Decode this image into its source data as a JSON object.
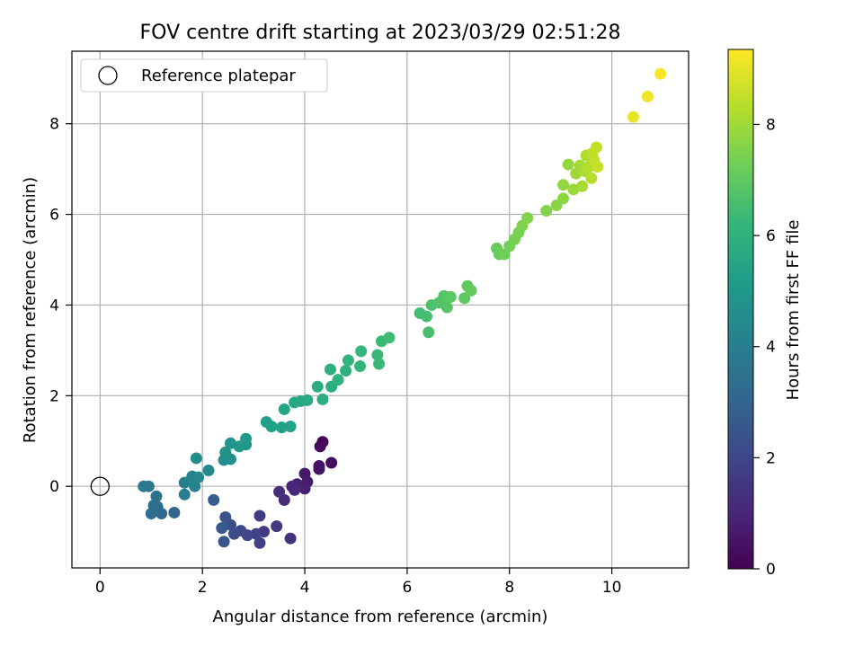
{
  "chart_data": {
    "type": "scatter",
    "title": "FOV centre drift starting at 2023/03/29 02:51:28",
    "xlabel": "Angular distance from reference (arcmin)",
    "ylabel": "Rotation from reference (arcmin)",
    "xlim": [
      -0.55,
      11.5
    ],
    "ylim": [
      -1.8,
      9.6
    ],
    "xticks": [
      0,
      2,
      4,
      6,
      8,
      10
    ],
    "yticks": [
      0,
      2,
      4,
      6,
      8
    ],
    "grid": true,
    "legend": {
      "position": "top-left",
      "entries": [
        {
          "label": "Reference platepar",
          "marker": "open-circle"
        }
      ]
    },
    "reference_point": {
      "x": 0,
      "y": 0,
      "label": "Reference platepar"
    },
    "colorbar": {
      "label": "Hours from first FF file",
      "colormap": "viridis",
      "range": [
        0,
        9.35
      ],
      "ticks": [
        0,
        2,
        4,
        6,
        8
      ]
    },
    "colormap_stops": [
      "#440154",
      "#482878",
      "#3e4989",
      "#31688e",
      "#26828e",
      "#1f9e89",
      "#35b779",
      "#6ece58",
      "#b5de2b",
      "#fde725"
    ],
    "points": [
      {
        "x": 4.35,
        "y": 0.98,
        "c": 0.1
      },
      {
        "x": 4.3,
        "y": 0.88,
        "c": 0.2
      },
      {
        "x": 4.52,
        "y": 0.52,
        "c": 0.3
      },
      {
        "x": 4.28,
        "y": 0.45,
        "c": 0.4
      },
      {
        "x": 4.28,
        "y": 0.38,
        "c": 0.5
      },
      {
        "x": 4.0,
        "y": 0.28,
        "c": 0.6
      },
      {
        "x": 4.05,
        "y": 0.1,
        "c": 0.7
      },
      {
        "x": 4.0,
        "y": -0.05,
        "c": 0.8
      },
      {
        "x": 3.85,
        "y": 0.05,
        "c": 0.9
      },
      {
        "x": 3.75,
        "y": 0.0,
        "c": 1.0
      },
      {
        "x": 3.8,
        "y": -0.08,
        "c": 1.05
      },
      {
        "x": 3.6,
        "y": -0.3,
        "c": 1.15
      },
      {
        "x": 3.5,
        "y": -0.12,
        "c": 1.25
      },
      {
        "x": 3.72,
        "y": -1.15,
        "c": 1.35
      },
      {
        "x": 3.45,
        "y": -0.88,
        "c": 1.5
      },
      {
        "x": 3.2,
        "y": -1.0,
        "c": 1.6
      },
      {
        "x": 3.12,
        "y": -0.65,
        "c": 1.7
      },
      {
        "x": 3.12,
        "y": -1.25,
        "c": 1.8
      },
      {
        "x": 3.05,
        "y": -1.05,
        "c": 1.9
      },
      {
        "x": 2.88,
        "y": -1.08,
        "c": 2.0
      },
      {
        "x": 2.75,
        "y": -0.98,
        "c": 2.1
      },
      {
        "x": 2.62,
        "y": -1.05,
        "c": 2.2
      },
      {
        "x": 2.55,
        "y": -0.85,
        "c": 2.3
      },
      {
        "x": 2.45,
        "y": -0.68,
        "c": 2.4
      },
      {
        "x": 2.42,
        "y": -1.22,
        "c": 2.5
      },
      {
        "x": 2.38,
        "y": -0.92,
        "c": 2.6
      },
      {
        "x": 2.22,
        "y": -0.3,
        "c": 2.75
      },
      {
        "x": 1.45,
        "y": -0.58,
        "c": 3.0
      },
      {
        "x": 1.2,
        "y": -0.6,
        "c": 3.15
      },
      {
        "x": 1.12,
        "y": -0.45,
        "c": 3.25
      },
      {
        "x": 1.0,
        "y": -0.6,
        "c": 3.35
      },
      {
        "x": 1.05,
        "y": -0.42,
        "c": 3.45
      },
      {
        "x": 1.1,
        "y": -0.22,
        "c": 3.55
      },
      {
        "x": 0.95,
        "y": 0.0,
        "c": 3.7
      },
      {
        "x": 0.85,
        "y": 0.0,
        "c": 3.8
      },
      {
        "x": 1.65,
        "y": -0.18,
        "c": 3.95
      },
      {
        "x": 1.65,
        "y": 0.08,
        "c": 4.05
      },
      {
        "x": 1.85,
        "y": 0.0,
        "c": 4.15
      },
      {
        "x": 1.8,
        "y": 0.22,
        "c": 4.25
      },
      {
        "x": 1.92,
        "y": 0.2,
        "c": 4.35
      },
      {
        "x": 2.12,
        "y": 0.35,
        "c": 4.45
      },
      {
        "x": 1.88,
        "y": 0.62,
        "c": 4.55
      },
      {
        "x": 2.42,
        "y": 0.58,
        "c": 4.62
      },
      {
        "x": 2.55,
        "y": 0.6,
        "c": 4.7
      },
      {
        "x": 2.45,
        "y": 0.75,
        "c": 4.78
      },
      {
        "x": 2.55,
        "y": 0.95,
        "c": 4.86
      },
      {
        "x": 2.72,
        "y": 0.88,
        "c": 4.94
      },
      {
        "x": 2.85,
        "y": 0.92,
        "c": 5.02
      },
      {
        "x": 2.85,
        "y": 1.05,
        "c": 5.1
      },
      {
        "x": 3.25,
        "y": 1.42,
        "c": 5.18
      },
      {
        "x": 3.35,
        "y": 1.32,
        "c": 5.26
      },
      {
        "x": 3.55,
        "y": 1.3,
        "c": 5.34
      },
      {
        "x": 3.72,
        "y": 1.32,
        "c": 5.42
      },
      {
        "x": 3.6,
        "y": 1.7,
        "c": 5.5
      },
      {
        "x": 3.8,
        "y": 1.85,
        "c": 5.56
      },
      {
        "x": 3.92,
        "y": 1.88,
        "c": 5.62
      },
      {
        "x": 4.05,
        "y": 1.9,
        "c": 5.68
      },
      {
        "x": 4.25,
        "y": 2.2,
        "c": 5.74
      },
      {
        "x": 4.35,
        "y": 1.92,
        "c": 5.8
      },
      {
        "x": 4.52,
        "y": 2.2,
        "c": 5.86
      },
      {
        "x": 4.5,
        "y": 2.58,
        "c": 5.92
      },
      {
        "x": 4.65,
        "y": 2.35,
        "c": 5.98
      },
      {
        "x": 4.8,
        "y": 2.55,
        "c": 6.04
      },
      {
        "x": 4.85,
        "y": 2.78,
        "c": 6.1
      },
      {
        "x": 5.08,
        "y": 2.65,
        "c": 6.16
      },
      {
        "x": 5.1,
        "y": 2.98,
        "c": 6.22
      },
      {
        "x": 5.42,
        "y": 2.9,
        "c": 6.28
      },
      {
        "x": 5.45,
        "y": 2.7,
        "c": 6.32
      },
      {
        "x": 5.5,
        "y": 3.2,
        "c": 6.36
      },
      {
        "x": 5.65,
        "y": 3.28,
        "c": 6.42
      },
      {
        "x": 6.25,
        "y": 3.82,
        "c": 6.48
      },
      {
        "x": 6.38,
        "y": 3.75,
        "c": 6.54
      },
      {
        "x": 6.42,
        "y": 3.4,
        "c": 6.6
      },
      {
        "x": 6.48,
        "y": 4.0,
        "c": 6.66
      },
      {
        "x": 6.62,
        "y": 4.05,
        "c": 6.72
      },
      {
        "x": 6.72,
        "y": 4.2,
        "c": 6.78
      },
      {
        "x": 6.78,
        "y": 3.95,
        "c": 6.84
      },
      {
        "x": 6.85,
        "y": 4.18,
        "c": 6.9
      },
      {
        "x": 7.12,
        "y": 4.15,
        "c": 6.96
      },
      {
        "x": 7.18,
        "y": 4.42,
        "c": 7.02
      },
      {
        "x": 7.25,
        "y": 4.32,
        "c": 7.08
      },
      {
        "x": 7.75,
        "y": 5.25,
        "c": 7.14
      },
      {
        "x": 7.8,
        "y": 5.12,
        "c": 7.2
      },
      {
        "x": 7.9,
        "y": 5.12,
        "c": 7.26
      },
      {
        "x": 8.0,
        "y": 5.3,
        "c": 7.32
      },
      {
        "x": 8.1,
        "y": 5.45,
        "c": 7.38
      },
      {
        "x": 8.18,
        "y": 5.6,
        "c": 7.44
      },
      {
        "x": 8.25,
        "y": 5.75,
        "c": 7.5
      },
      {
        "x": 8.35,
        "y": 5.92,
        "c": 7.56
      },
      {
        "x": 8.72,
        "y": 6.08,
        "c": 7.62
      },
      {
        "x": 8.92,
        "y": 6.2,
        "c": 7.68
      },
      {
        "x": 9.05,
        "y": 6.35,
        "c": 7.74
      },
      {
        "x": 9.05,
        "y": 6.65,
        "c": 7.8
      },
      {
        "x": 9.15,
        "y": 7.1,
        "c": 7.86
      },
      {
        "x": 9.25,
        "y": 6.55,
        "c": 7.92
      },
      {
        "x": 9.3,
        "y": 6.9,
        "c": 7.98
      },
      {
        "x": 9.38,
        "y": 7.08,
        "c": 8.04
      },
      {
        "x": 9.42,
        "y": 6.62,
        "c": 8.1
      },
      {
        "x": 9.48,
        "y": 6.95,
        "c": 8.16
      },
      {
        "x": 9.5,
        "y": 7.3,
        "c": 8.22
      },
      {
        "x": 9.55,
        "y": 7.05,
        "c": 8.28
      },
      {
        "x": 9.6,
        "y": 6.8,
        "c": 8.34
      },
      {
        "x": 9.62,
        "y": 7.35,
        "c": 8.4
      },
      {
        "x": 9.65,
        "y": 7.2,
        "c": 8.45
      },
      {
        "x": 9.7,
        "y": 7.48,
        "c": 8.5
      },
      {
        "x": 9.72,
        "y": 7.05,
        "c": 8.55
      },
      {
        "x": 10.42,
        "y": 8.15,
        "c": 9.05
      },
      {
        "x": 10.7,
        "y": 8.6,
        "c": 9.15
      },
      {
        "x": 10.95,
        "y": 9.1,
        "c": 9.25
      }
    ]
  }
}
